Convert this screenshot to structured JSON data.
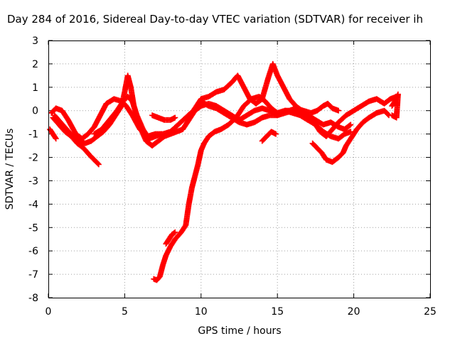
{
  "chart_data": {
    "type": "scatter",
    "title": "Day 284 of 2016, Sidereal Day-to-day VTEC variation (SDTVAR) for receiver ih",
    "xlabel": "GPS time / hours",
    "ylabel": "SDTVAR / TECUs",
    "xlim": [
      0,
      25
    ],
    "ylim": [
      -8,
      3
    ],
    "x_ticks": [
      "0",
      "5",
      "10",
      "15",
      "20",
      "25"
    ],
    "y_ticks": [
      "3",
      "2",
      "1",
      "0",
      "-1",
      "-2",
      "-3",
      "-4",
      "-5",
      "-6",
      "-7",
      "-8"
    ],
    "grid": true,
    "legend": "none",
    "marker": "plus",
    "color": "#ff0000",
    "series": [
      {
        "points": [
          [
            0.2,
            -0.1
          ],
          [
            0.5,
            0.1
          ],
          [
            0.9,
            0.0
          ],
          [
            1.3,
            -0.4
          ],
          [
            1.8,
            -1.0
          ],
          [
            2.2,
            -1.2
          ],
          [
            2.6,
            -1.0
          ],
          [
            3.0,
            -0.7
          ],
          [
            3.4,
            -0.2
          ],
          [
            3.8,
            0.3
          ],
          [
            4.3,
            0.5
          ],
          [
            4.8,
            0.4
          ],
          [
            5.1,
            0.2
          ],
          [
            5.5,
            -0.2
          ],
          [
            6.0,
            -0.8
          ],
          [
            6.5,
            -1.1
          ],
          [
            7.0,
            -1.0
          ],
          [
            7.5,
            -1.0
          ],
          [
            8.0,
            -0.9
          ],
          [
            8.5,
            -0.6
          ],
          [
            9.0,
            -0.3
          ],
          [
            9.5,
            0.0
          ],
          [
            10.0,
            0.5
          ],
          [
            10.5,
            0.6
          ],
          [
            11.0,
            0.8
          ],
          [
            11.5,
            0.9
          ],
          [
            12.0,
            1.2
          ],
          [
            12.4,
            1.5
          ],
          [
            12.8,
            1.0
          ],
          [
            13.2,
            0.5
          ],
          [
            13.6,
            0.3
          ],
          [
            14.0,
            0.5
          ],
          [
            14.4,
            1.4
          ],
          [
            14.7,
            2.0
          ],
          [
            15.0,
            1.5
          ],
          [
            15.4,
            1.0
          ],
          [
            15.8,
            0.5
          ],
          [
            16.2,
            0.2
          ],
          [
            16.6,
            0.0
          ],
          [
            17.0,
            -0.2
          ],
          [
            17.4,
            -0.5
          ],
          [
            17.8,
            -0.9
          ],
          [
            18.2,
            -1.1
          ],
          [
            18.6,
            -0.8
          ],
          [
            19.0,
            -0.5
          ],
          [
            19.5,
            -0.2
          ],
          [
            20.0,
            0.0
          ],
          [
            20.5,
            0.2
          ],
          [
            21.0,
            0.4
          ],
          [
            21.5,
            0.5
          ],
          [
            22.0,
            0.3
          ],
          [
            22.4,
            0.5
          ],
          [
            22.8,
            0.6
          ]
        ]
      },
      {
        "points": [
          [
            0.3,
            -0.3
          ],
          [
            0.7,
            -0.6
          ],
          [
            1.1,
            -0.9
          ],
          [
            1.5,
            -1.1
          ],
          [
            1.9,
            -1.4
          ],
          [
            2.3,
            -1.6
          ],
          [
            2.7,
            -1.9
          ],
          [
            3.0,
            -2.1
          ],
          [
            3.3,
            -2.3
          ]
        ]
      },
      {
        "points": [
          [
            0.1,
            -0.8
          ],
          [
            0.3,
            -1.0
          ],
          [
            0.5,
            -1.2
          ]
        ]
      },
      {
        "points": [
          [
            0.4,
            -0.2
          ],
          [
            0.8,
            -0.5
          ],
          [
            1.2,
            -0.8
          ],
          [
            1.6,
            -1.1
          ],
          [
            2.0,
            -1.3
          ],
          [
            2.4,
            -1.4
          ],
          [
            2.8,
            -1.3
          ],
          [
            3.2,
            -1.1
          ],
          [
            3.6,
            -0.9
          ],
          [
            4.0,
            -0.6
          ],
          [
            4.4,
            -0.2
          ],
          [
            4.8,
            0.2
          ],
          [
            5.0,
            0.8
          ],
          [
            5.2,
            1.5
          ],
          [
            5.4,
            1.0
          ],
          [
            5.6,
            0.2
          ],
          [
            6.0,
            -0.7
          ],
          [
            6.4,
            -1.3
          ],
          [
            6.8,
            -1.5
          ],
          [
            7.2,
            -1.3
          ],
          [
            7.6,
            -1.1
          ],
          [
            8.0,
            -1.0
          ],
          [
            8.4,
            -0.9
          ],
          [
            8.8,
            -0.8
          ],
          [
            9.2,
            -0.4
          ],
          [
            9.6,
            0.0
          ],
          [
            10.0,
            0.2
          ],
          [
            10.5,
            0.3
          ],
          [
            11.0,
            0.2
          ],
          [
            11.5,
            0.0
          ],
          [
            12.0,
            -0.2
          ],
          [
            12.5,
            -0.4
          ],
          [
            13.0,
            -0.2
          ],
          [
            13.5,
            0.0
          ],
          [
            14.0,
            0.1
          ],
          [
            14.5,
            0.0
          ],
          [
            15.0,
            -0.2
          ],
          [
            15.5,
            -0.1
          ],
          [
            16.0,
            0.0
          ],
          [
            16.5,
            -0.1
          ],
          [
            17.0,
            -0.2
          ],
          [
            17.5,
            -0.4
          ],
          [
            18.0,
            -0.6
          ],
          [
            18.5,
            -0.5
          ],
          [
            19.0,
            -0.7
          ],
          [
            19.4,
            -0.8
          ],
          [
            19.8,
            -0.6
          ]
        ]
      },
      {
        "points": [
          [
            3.0,
            -1.0
          ],
          [
            3.5,
            -0.8
          ],
          [
            4.0,
            -0.4
          ],
          [
            4.5,
            0.0
          ],
          [
            4.9,
            0.4
          ],
          [
            5.2,
            0.6
          ],
          [
            5.5,
            0.4
          ],
          [
            5.8,
            -0.2
          ],
          [
            6.2,
            -0.8
          ],
          [
            6.6,
            -1.2
          ],
          [
            7.0,
            -1.1
          ],
          [
            7.4,
            -1.0
          ]
        ]
      },
      {
        "points": [
          [
            6.9,
            -7.2
          ],
          [
            7.1,
            -7.25
          ],
          [
            7.3,
            -7.1
          ],
          [
            7.5,
            -6.6
          ],
          [
            7.7,
            -6.2
          ],
          [
            8.0,
            -5.8
          ],
          [
            8.3,
            -5.5
          ],
          [
            8.7,
            -5.2
          ],
          [
            9.0,
            -4.9
          ],
          [
            9.2,
            -4.0
          ],
          [
            9.4,
            -3.3
          ],
          [
            9.6,
            -2.8
          ],
          [
            9.8,
            -2.3
          ],
          [
            10.0,
            -1.7
          ],
          [
            10.2,
            -1.4
          ],
          [
            10.5,
            -1.1
          ],
          [
            10.9,
            -0.9
          ],
          [
            11.3,
            -0.8
          ],
          [
            11.8,
            -0.6
          ],
          [
            12.3,
            -0.3
          ],
          [
            12.8,
            0.2
          ],
          [
            13.3,
            0.5
          ],
          [
            13.8,
            0.6
          ],
          [
            14.2,
            0.4
          ],
          [
            14.6,
            0.1
          ],
          [
            15.0,
            -0.1
          ],
          [
            15.5,
            0.0
          ],
          [
            16.0,
            -0.1
          ],
          [
            16.5,
            -0.2
          ],
          [
            17.0,
            -0.4
          ],
          [
            17.5,
            -0.6
          ],
          [
            18.0,
            -0.9
          ],
          [
            18.5,
            -1.1
          ],
          [
            19.0,
            -1.2
          ],
          [
            19.4,
            -1.0
          ],
          [
            19.8,
            -0.9
          ]
        ]
      },
      {
        "points": [
          [
            7.7,
            -5.7
          ],
          [
            7.9,
            -5.5
          ],
          [
            8.1,
            -5.3
          ],
          [
            8.3,
            -5.2
          ]
        ]
      },
      {
        "points": [
          [
            6.8,
            -0.2
          ],
          [
            7.2,
            -0.3
          ],
          [
            7.6,
            -0.4
          ],
          [
            8.0,
            -0.4
          ],
          [
            8.3,
            -0.3
          ]
        ]
      },
      {
        "points": [
          [
            10.0,
            0.4
          ],
          [
            10.5,
            0.2
          ],
          [
            11.0,
            0.1
          ],
          [
            11.5,
            -0.1
          ],
          [
            12.0,
            -0.3
          ],
          [
            12.5,
            -0.5
          ],
          [
            13.0,
            -0.6
          ],
          [
            13.5,
            -0.5
          ],
          [
            14.0,
            -0.3
          ],
          [
            14.5,
            -0.2
          ],
          [
            15.0,
            -0.2
          ],
          [
            15.5,
            0.0
          ],
          [
            16.0,
            0.0
          ],
          [
            16.5,
            -0.2
          ],
          [
            17.0,
            -0.4
          ]
        ]
      },
      {
        "points": [
          [
            14.0,
            -1.3
          ],
          [
            14.3,
            -1.1
          ],
          [
            14.6,
            -0.9
          ],
          [
            14.9,
            -1.0
          ]
        ]
      },
      {
        "points": [
          [
            17.3,
            -1.4
          ],
          [
            17.6,
            -1.6
          ],
          [
            17.9,
            -1.8
          ],
          [
            18.2,
            -2.1
          ],
          [
            18.6,
            -2.2
          ],
          [
            19.0,
            -2.0
          ],
          [
            19.3,
            -1.8
          ],
          [
            19.5,
            -1.5
          ],
          [
            19.8,
            -1.2
          ],
          [
            20.2,
            -0.8
          ],
          [
            20.6,
            -0.5
          ],
          [
            21.0,
            -0.3
          ],
          [
            21.5,
            -0.1
          ],
          [
            22.0,
            0.0
          ],
          [
            22.3,
            -0.2
          ]
        ]
      },
      {
        "points": [
          [
            15.8,
            0.0
          ],
          [
            16.2,
            0.1
          ],
          [
            16.7,
            0.0
          ],
          [
            17.2,
            -0.1
          ],
          [
            17.6,
            0.0
          ],
          [
            18.0,
            0.2
          ],
          [
            18.3,
            0.3
          ],
          [
            18.6,
            0.1
          ],
          [
            19.0,
            0.0
          ]
        ]
      },
      {
        "points": [
          [
            22.5,
            0.2
          ],
          [
            22.7,
            0.4
          ],
          [
            22.9,
            0.7
          ],
          [
            22.8,
            -0.3
          ],
          [
            22.5,
            -0.2
          ]
        ]
      }
    ]
  }
}
